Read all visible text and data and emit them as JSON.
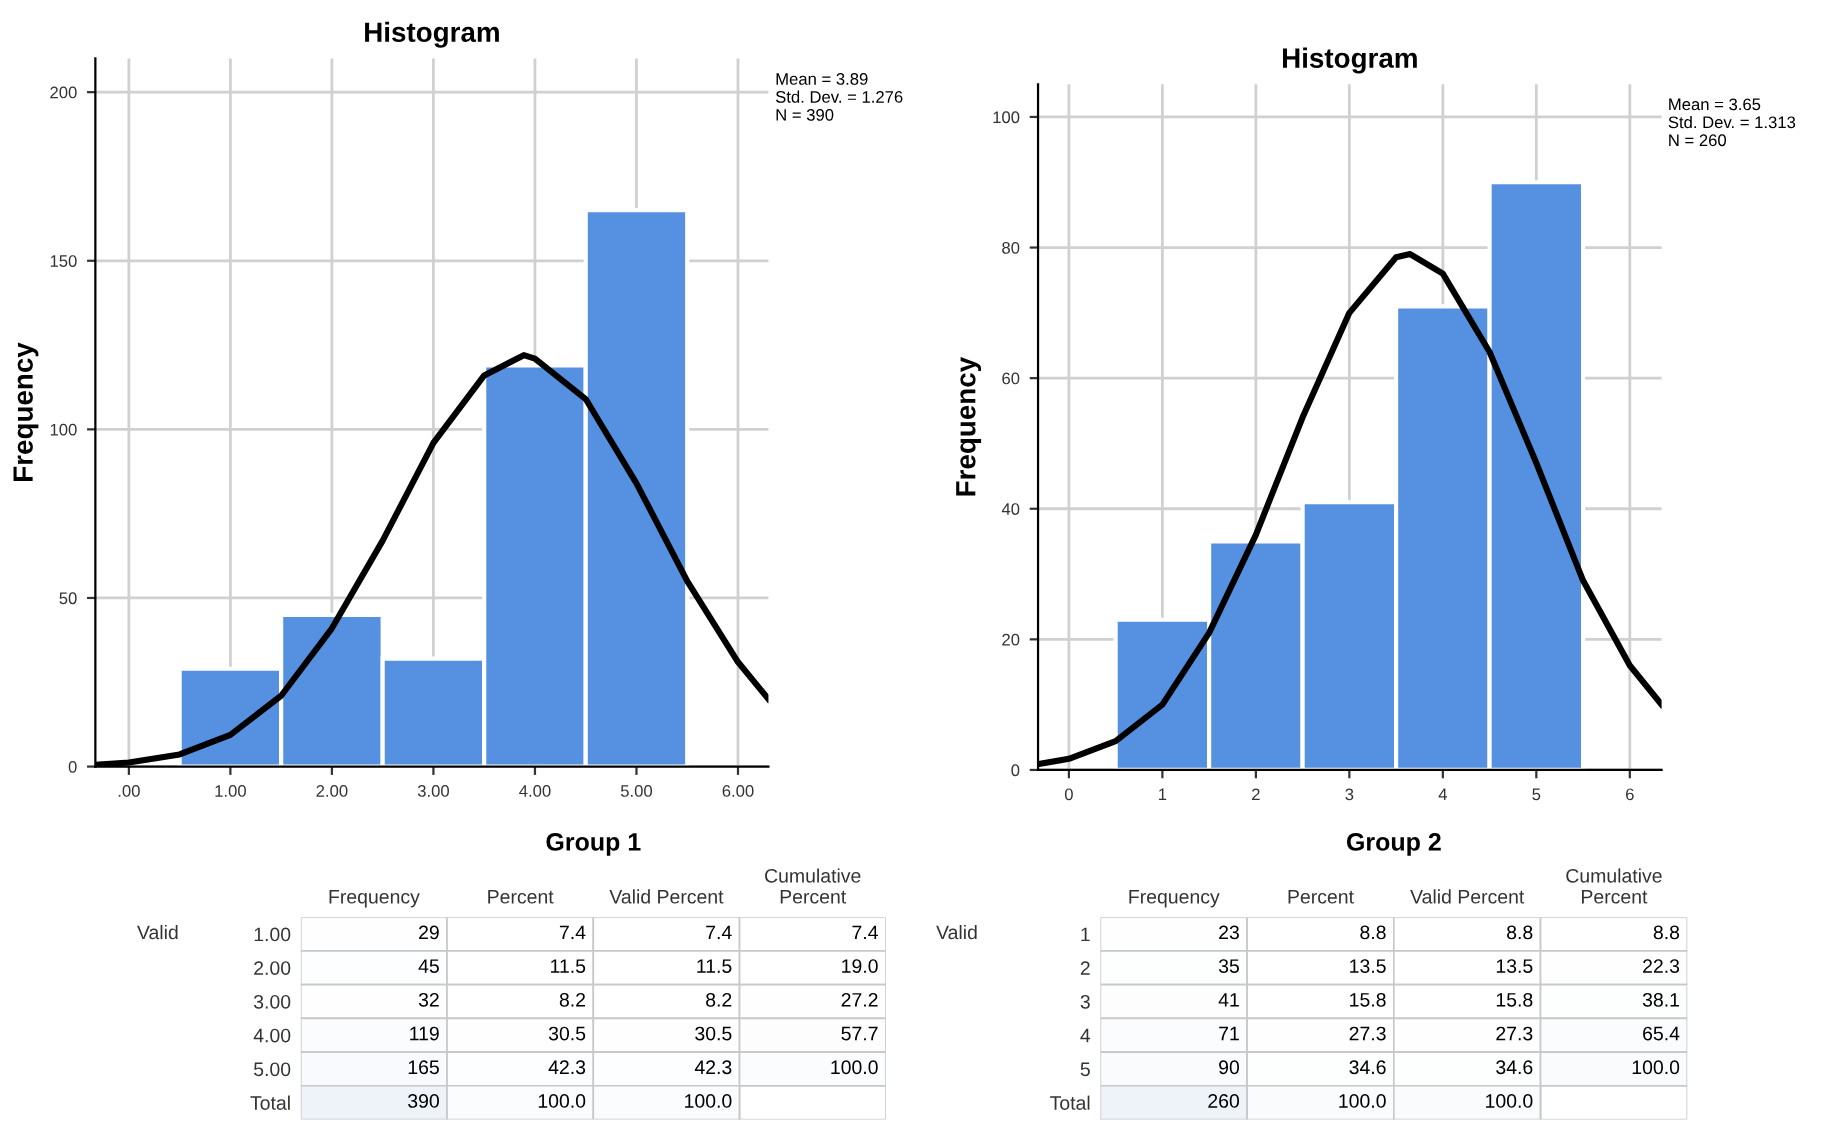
{
  "chart_data": [
    {
      "type": "histogram",
      "title": "Histogram",
      "ylabel": "Frequency",
      "bins": [
        0.5,
        1.5,
        2.5,
        3.5,
        4.5,
        5.5
      ],
      "values": [
        29,
        45,
        32,
        119,
        165
      ],
      "color": "#5591e0",
      "series": [
        {
          "type": "line",
          "color": "#000000",
          "x": [
            -0.33,
            0,
            0.5,
            1,
            1.5,
            2,
            2.5,
            3,
            3.5,
            3.89,
            4,
            4.5,
            5,
            5.5,
            6,
            6.3
          ],
          "values": [
            0.5,
            1.2,
            3.6,
            9.4,
            21,
            41,
            67,
            96,
            116,
            122,
            121,
            109,
            84,
            55,
            31,
            20
          ]
        }
      ],
      "xlim": [
        -0.33,
        6.3
      ],
      "xticks": [
        {
          "value": 0,
          "label": ".00"
        },
        {
          "value": 1,
          "label": "1.00"
        },
        {
          "value": 2,
          "label": "2.00"
        },
        {
          "value": 3,
          "label": "3.00"
        },
        {
          "value": 4,
          "label": "4.00"
        },
        {
          "value": 5,
          "label": "5.00"
        },
        {
          "value": 6,
          "label": "6.00"
        }
      ],
      "ylim": [
        0,
        210
      ],
      "yticks": [
        0,
        50,
        100,
        150,
        200
      ],
      "grid": true,
      "annotations": [
        "Mean = 3.89\nStd. Dev. = 1.276\nN = 390"
      ]
    },
    {
      "type": "histogram",
      "title": "Histogram",
      "ylabel": "Frequency",
      "bins": [
        0.5,
        1.5,
        2.5,
        3.5,
        4.5,
        5.5
      ],
      "values": [
        23,
        35,
        41,
        71,
        90
      ],
      "color": "#5591e0",
      "series": [
        {
          "type": "line",
          "color": "#000000",
          "x": [
            -0.33,
            0,
            0.5,
            1,
            1.5,
            2,
            2.5,
            3,
            3.5,
            3.65,
            4,
            4.5,
            5,
            5.5,
            6,
            6.34
          ],
          "values": [
            0.9,
            1.7,
            4.4,
            10,
            21,
            36,
            54,
            70,
            78.5,
            79,
            76,
            64,
            47,
            29,
            16,
            10
          ]
        }
      ],
      "xlim": [
        -0.33,
        6.34
      ],
      "xticks": [
        0,
        1,
        2,
        3,
        4,
        5,
        6
      ],
      "ylim": [
        0,
        105
      ],
      "yticks": [
        0,
        20,
        40,
        60,
        80,
        100
      ],
      "grid": true,
      "annotations": [
        "Mean = 3.65\nStd. Dev. = 1.313\nN = 260"
      ]
    },
    {
      "type": "heatmap",
      "title": "Group 1",
      "categories": [
        "Frequency",
        "Percent",
        "Valid Percent",
        "Cumulative\nPercent"
      ],
      "y_categories": [
        "1.00",
        "2.00",
        "3.00",
        "4.00",
        "5.00",
        "Total"
      ],
      "cell_labels": [
        [
          "29",
          "7.4",
          "7.4",
          "7.4"
        ],
        [
          "45",
          "11.5",
          "11.5",
          "19.0"
        ],
        [
          "32",
          "8.2",
          "8.2",
          "27.2"
        ],
        [
          "119",
          "30.5",
          "30.5",
          "57.7"
        ],
        [
          "165",
          "42.3",
          "42.3",
          "100.0"
        ],
        [
          "390",
          "100.0",
          "100.0",
          null
        ]
      ],
      "cells": [
        [
          29,
          7.4,
          7.4,
          7.4
        ],
        [
          45,
          11.5,
          11.5,
          19.0
        ],
        [
          32,
          8.2,
          8.2,
          27.2
        ],
        [
          119,
          30.5,
          30.5,
          57.7
        ],
        [
          165,
          42.3,
          42.3,
          100.0
        ],
        [
          390,
          100.0,
          100.0,
          null
        ]
      ],
      "annotations": [
        "Valid"
      ]
    },
    {
      "type": "heatmap",
      "title": "Group 2",
      "categories": [
        "Frequency",
        "Percent",
        "Valid Percent",
        "Cumulative\nPercent"
      ],
      "y_categories": [
        "1",
        "2",
        "3",
        "4",
        "5",
        "Total"
      ],
      "cell_labels": [
        [
          "23",
          "8.8",
          "8.8",
          "8.8"
        ],
        [
          "35",
          "13.5",
          "13.5",
          "22.3"
        ],
        [
          "41",
          "15.8",
          "15.8",
          "38.1"
        ],
        [
          "71",
          "27.3",
          "27.3",
          "65.4"
        ],
        [
          "90",
          "34.6",
          "34.6",
          "100.0"
        ],
        [
          "260",
          "100.0",
          "100.0",
          null
        ]
      ],
      "cells": [
        [
          23,
          8.8,
          8.8,
          8.8
        ],
        [
          35,
          13.5,
          13.5,
          22.3
        ],
        [
          41,
          15.8,
          15.8,
          38.1
        ],
        [
          71,
          27.3,
          27.3,
          65.4
        ],
        [
          90,
          34.6,
          34.6,
          100.0
        ],
        [
          260,
          100.0,
          100.0,
          null
        ]
      ],
      "annotations": [
        "Valid"
      ]
    }
  ]
}
